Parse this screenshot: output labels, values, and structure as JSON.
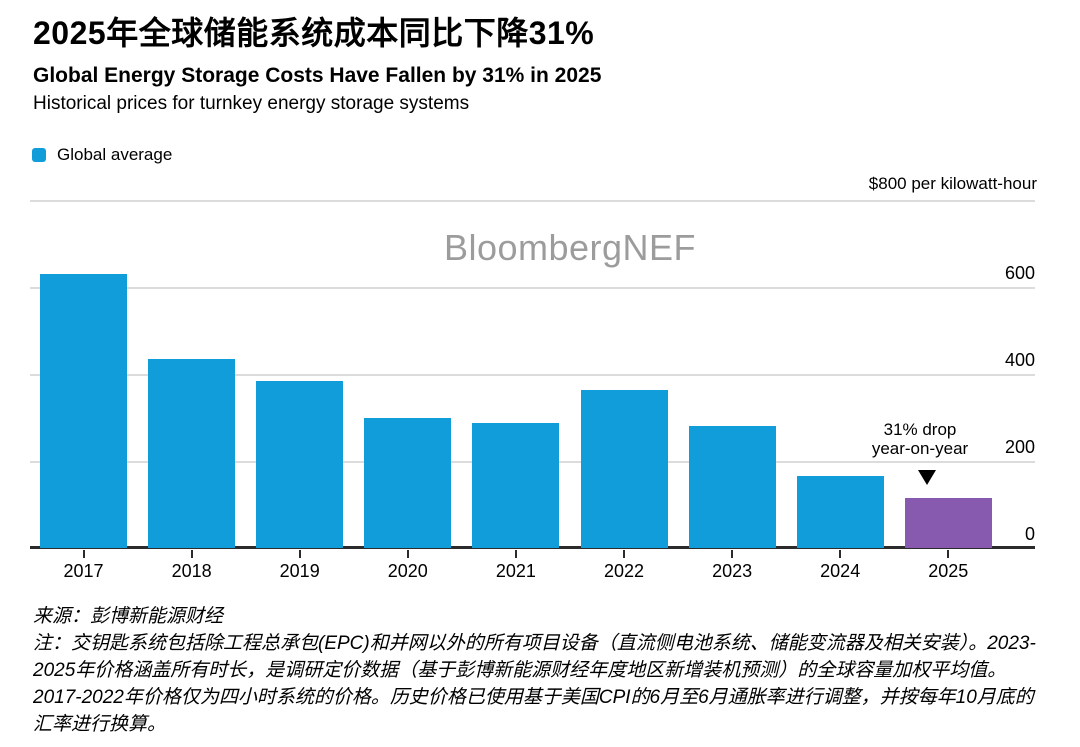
{
  "header": {
    "title_zh": "2025年全球储能系统成本同比下降31%",
    "title_en": "Global Energy Storage Costs Have Fallen by 31% in 2025",
    "subtitle": "Historical prices for turnkey energy storage systems"
  },
  "legend": {
    "label": "Global average"
  },
  "axis": {
    "unit_label": "$800 per kilowatt-hour",
    "right_tick_values": [
      600,
      400,
      200,
      0
    ]
  },
  "watermark": "BloombergNEF",
  "annotation": {
    "line1": "31% drop",
    "line2": "year-on-year"
  },
  "colors": {
    "bar_blue": "#109dd9",
    "bar_purple": "#875ab0",
    "gridline": "#dcdcdc",
    "axis_line": "#2b2b2b",
    "watermark": "#9c9c9c"
  },
  "notes": {
    "source": "来源：彭博新能源财经",
    "note": "注：交钥匙系统包括除工程总承包(EPC)和并网以外的所有项目设备（直流侧电池系统、储能变流器及相关安装）。2023-2025年价格涵盖所有时长，是调研定价数据（基于彭博新能源财经年度地区新增装机预测）的全球容量加权平均值。2017-2022年价格仅为四小时系统的价格。历史价格已使用基于美国CPI的6月至6月通胀率进行调整，并按每年10月底的汇率进行换算。"
  },
  "chart_data": {
    "type": "bar",
    "title": "Global Energy Storage Costs Have Fallen by 31% in 2025",
    "subtitle": "Historical prices for turnkey energy storage systems",
    "categories": [
      "2017",
      "2018",
      "2019",
      "2020",
      "2021",
      "2022",
      "2023",
      "2024",
      "2025"
    ],
    "series": [
      {
        "name": "Global average",
        "values": [
          630,
          435,
          384,
          298,
          287,
          363,
          281,
          165,
          114
        ]
      }
    ],
    "unit": "$ per kilowatt-hour",
    "ylabel": "$800 per kilowatt-hour",
    "ylim": [
      0,
      800
    ],
    "y_gridlines": [
      200,
      400,
      600,
      800
    ],
    "grid": true,
    "legend_position": "top-left",
    "axis_labels_position": "right",
    "highlight": {
      "category": "2025",
      "note": "31% drop year-on-year"
    }
  }
}
